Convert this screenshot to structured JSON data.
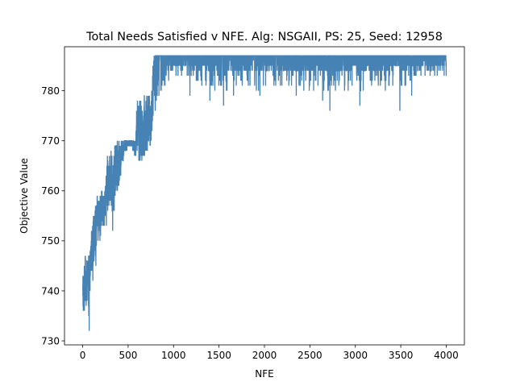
{
  "chart_data": {
    "type": "line",
    "title": "Total Needs Satisfied v NFE. Alg: NSGAII, PS: 25, Seed: 12958",
    "xlabel": "NFE",
    "ylabel": "Objective Value",
    "xlim": [
      -200,
      4200
    ],
    "ylim": [
      729.2,
      788.8
    ],
    "x_ticks": [
      0,
      500,
      1000,
      1500,
      2000,
      2500,
      3000,
      3500,
      4000
    ],
    "y_ticks": [
      730,
      740,
      750,
      760,
      770,
      780
    ],
    "grid": false,
    "legend": "none",
    "line_color": "#4682b4",
    "series": [
      {
        "x_start": 1,
        "x_end": 4000,
        "x_step": 1,
        "envelope": [
          [
            0,
            736,
            743
          ],
          [
            30,
            735,
            747
          ],
          [
            60,
            739,
            746
          ],
          [
            70,
            732,
            748
          ],
          [
            85,
            742,
            750
          ],
          [
            110,
            745,
            754
          ],
          [
            130,
            745,
            756
          ],
          [
            160,
            750,
            759
          ],
          [
            190,
            750,
            759
          ],
          [
            220,
            753,
            760
          ],
          [
            250,
            752,
            761
          ],
          [
            270,
            755,
            767
          ],
          [
            300,
            757,
            768
          ],
          [
            330,
            752,
            768
          ],
          [
            360,
            759,
            770
          ],
          [
            400,
            760,
            770
          ],
          [
            430,
            765,
            770
          ],
          [
            480,
            768,
            770
          ],
          [
            530,
            769,
            770
          ],
          [
            580,
            767,
            770
          ],
          [
            600,
            766,
            779
          ],
          [
            650,
            766,
            779
          ],
          [
            700,
            767,
            779
          ],
          [
            750,
            769,
            779
          ],
          [
            780,
            775,
            787
          ],
          [
            850,
            779,
            787
          ],
          [
            900,
            781,
            787
          ],
          [
            1000,
            783,
            787
          ],
          [
            1500,
            780,
            787
          ],
          [
            2000,
            780,
            787
          ],
          [
            2500,
            780,
            787
          ],
          [
            3000,
            780,
            787
          ],
          [
            3500,
            781,
            787
          ],
          [
            3800,
            783,
            787
          ],
          [
            4000,
            783,
            787
          ]
        ],
        "end_value": 783,
        "dips": [
          {
            "x": 72,
            "y": 732
          },
          {
            "x": 112,
            "y": 742
          },
          {
            "x": 145,
            "y": 745
          },
          {
            "x": 260,
            "y": 753
          },
          {
            "x": 330,
            "y": 752
          },
          {
            "x": 820,
            "y": 779
          },
          {
            "x": 1180,
            "y": 779
          },
          {
            "x": 1400,
            "y": 778
          },
          {
            "x": 1550,
            "y": 777
          },
          {
            "x": 1660,
            "y": 779
          },
          {
            "x": 1950,
            "y": 779
          },
          {
            "x": 2350,
            "y": 779
          },
          {
            "x": 2640,
            "y": 778
          },
          {
            "x": 2720,
            "y": 776
          },
          {
            "x": 3050,
            "y": 777
          },
          {
            "x": 3490,
            "y": 776
          },
          {
            "x": 3620,
            "y": 779
          },
          {
            "x": 3330,
            "y": 780
          }
        ]
      }
    ]
  }
}
